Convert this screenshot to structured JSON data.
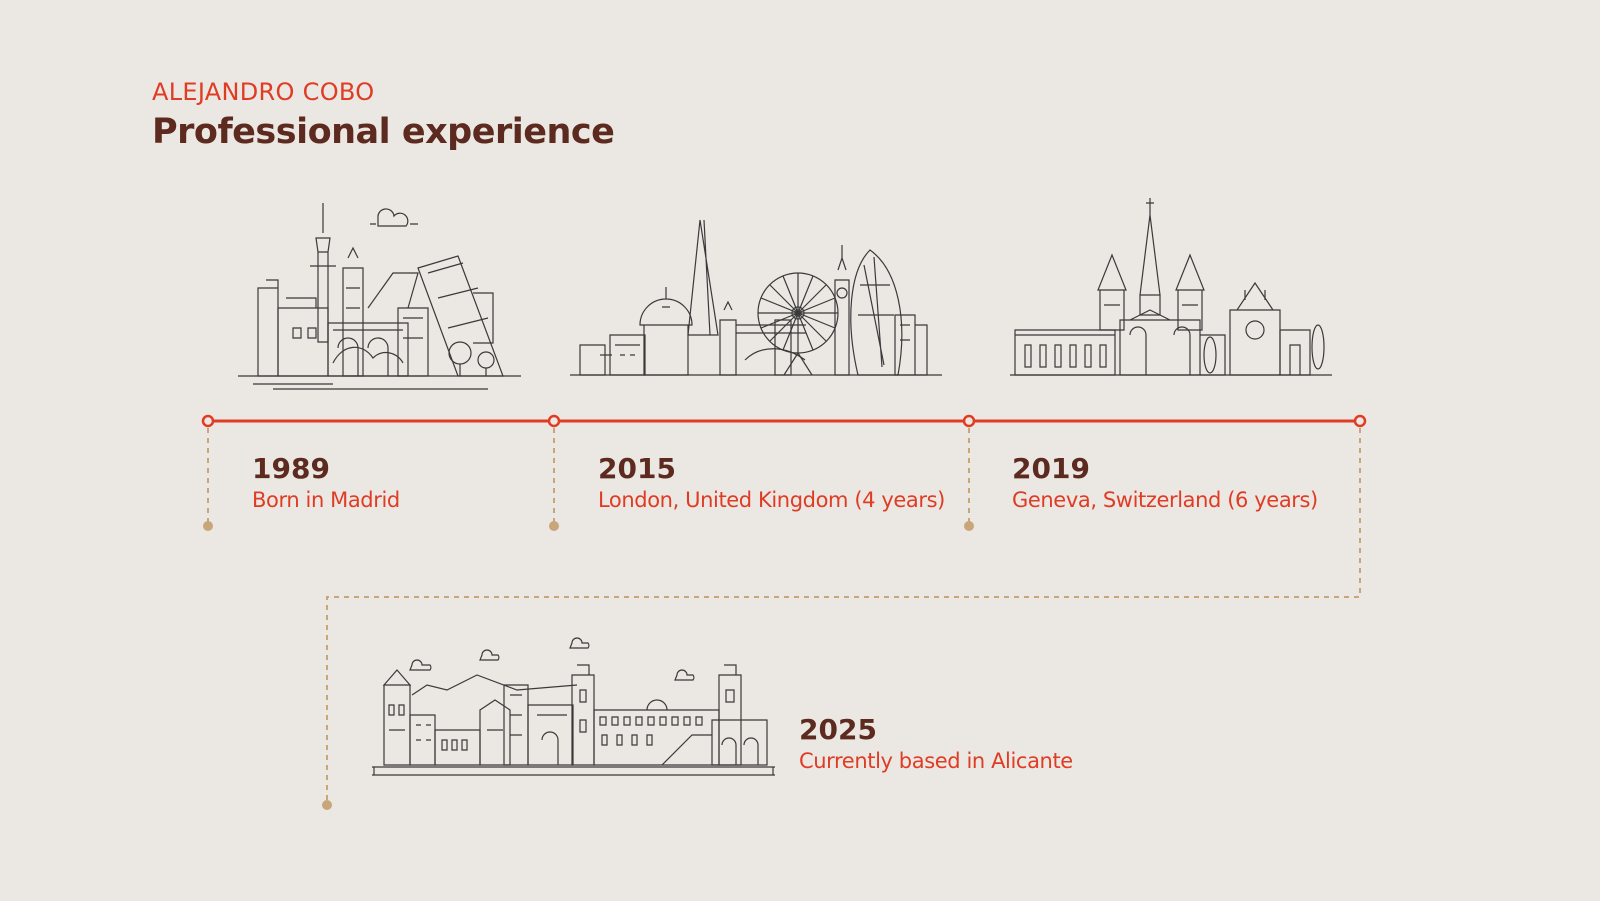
{
  "header": {
    "eyebrow": "ALEJANDRO COBO",
    "title": "Professional experience"
  },
  "colors": {
    "background": "#ebe7e3",
    "accent": "#e03c24",
    "heading": "#5c2a1e",
    "connector": "#c9a57a"
  },
  "timeline": [
    {
      "year": "1989",
      "description": "Born in Madrid",
      "skyline": "madrid-skyline"
    },
    {
      "year": "2015",
      "description": "London, United Kingdom (4 years)",
      "skyline": "london-skyline"
    },
    {
      "year": "2019",
      "description": "Geneva, Switzerland (6 years)",
      "skyline": "geneva-skyline"
    },
    {
      "year": "2025",
      "description": "Currently based in Alicante",
      "skyline": "alicante-skyline"
    }
  ]
}
